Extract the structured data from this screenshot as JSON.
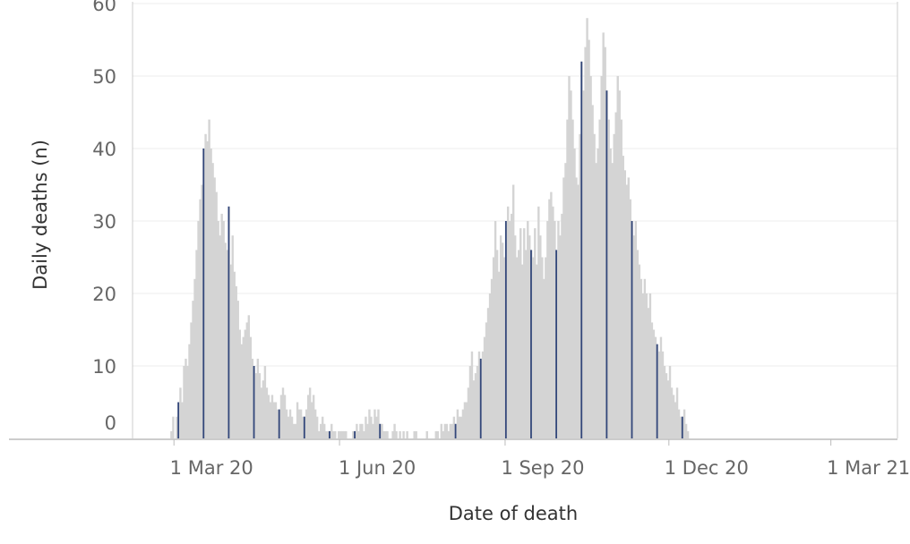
{
  "chart_data": {
    "type": "bar",
    "title": "",
    "xlabel": "Date of death",
    "ylabel": "Daily deaths (n)",
    "ylim": [
      0,
      60
    ],
    "xlim": [
      "2020-02-07",
      "2021-04-07"
    ],
    "grid": {
      "horizontal": true,
      "vertical": false
    },
    "y_ticks": [
      0,
      10,
      20,
      30,
      40,
      50,
      60
    ],
    "x_ticks": [
      {
        "date": "2020-03-01",
        "label": "1 Mar 20"
      },
      {
        "date": "2020-06-01",
        "label": "1 Jun 20"
      },
      {
        "date": "2020-09-01",
        "label": "1 Sep 20"
      },
      {
        "date": "2020-12-01",
        "label": "1 Dec 20"
      },
      {
        "date": "2021-03-01",
        "label": "1 Mar 21"
      }
    ],
    "series": [
      {
        "start_date": "2020-02-28",
        "values": [
          1,
          3,
          0,
          3,
          5,
          7,
          5,
          10,
          11,
          10,
          13,
          16,
          19,
          22,
          26,
          30,
          33,
          35,
          40,
          42,
          41,
          44,
          40,
          38,
          36,
          34,
          30,
          28,
          31,
          30,
          27,
          26,
          32,
          24,
          28,
          23,
          21,
          19,
          15,
          13,
          14,
          15,
          16,
          17,
          14,
          11,
          10,
          9,
          11,
          9,
          7,
          8,
          10,
          7,
          6,
          5,
          6,
          5,
          5,
          4,
          4,
          6,
          7,
          6,
          4,
          3,
          4,
          3,
          2,
          2,
          5,
          4,
          4,
          3,
          3,
          4,
          6,
          7,
          5,
          6,
          4,
          3,
          1,
          2,
          3,
          2,
          1,
          1,
          1,
          2,
          1,
          1,
          0,
          1,
          1,
          1,
          1,
          1,
          0,
          0,
          0,
          1,
          1,
          2,
          1,
          2,
          2,
          1,
          3,
          2,
          4,
          3,
          2,
          4,
          3,
          4,
          2,
          2,
          1,
          1,
          1,
          0,
          0,
          1,
          2,
          1,
          0,
          1,
          0,
          1,
          0,
          1,
          0,
          0,
          0,
          1,
          1,
          0,
          0,
          0,
          0,
          0,
          1,
          0,
          0,
          0,
          0,
          1,
          1,
          0,
          2,
          1,
          2,
          2,
          1,
          2,
          2,
          3,
          2,
          4,
          3,
          3,
          4,
          5,
          5,
          7,
          10,
          12,
          8,
          9,
          10,
          12,
          11,
          12,
          14,
          16,
          18,
          20,
          22,
          25,
          30,
          26,
          23,
          28,
          27,
          25,
          30,
          32,
          30,
          31,
          35,
          28,
          25,
          26,
          29,
          24,
          29,
          26,
          30,
          28,
          26,
          25,
          29,
          24,
          32,
          28,
          25,
          22,
          25,
          30,
          33,
          34,
          32,
          30,
          26,
          30,
          28,
          31,
          36,
          38,
          44,
          50,
          48,
          44,
          40,
          36,
          35,
          42,
          52,
          48,
          54,
          58,
          55,
          50,
          46,
          42,
          38,
          40,
          44,
          50,
          56,
          54,
          48,
          44,
          40,
          38,
          42,
          45,
          50,
          48,
          44,
          39,
          37,
          35,
          36,
          33,
          30,
          28,
          30,
          26,
          24,
          22,
          20,
          22,
          20,
          18,
          20,
          16,
          15,
          14,
          13,
          12,
          14,
          12,
          10,
          9,
          8,
          10,
          7,
          6,
          5,
          7,
          4,
          3,
          3,
          4,
          2,
          1
        ]
      }
    ]
  }
}
